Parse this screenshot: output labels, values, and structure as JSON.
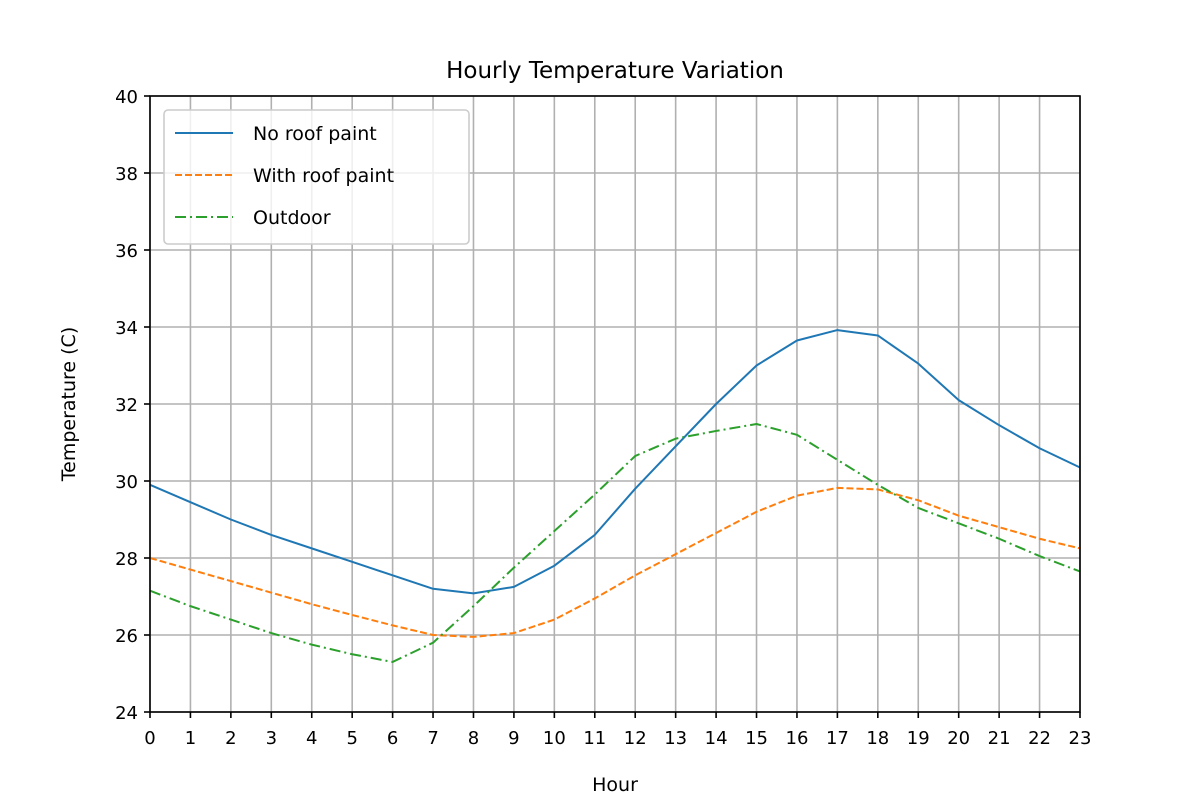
{
  "chart_data": {
    "type": "line",
    "title": "Hourly Temperature Variation",
    "xlabel": "Hour",
    "ylabel": "Temperature (C)",
    "x": [
      0,
      1,
      2,
      3,
      4,
      5,
      6,
      7,
      8,
      9,
      10,
      11,
      12,
      13,
      14,
      15,
      16,
      17,
      18,
      19,
      20,
      21,
      22,
      23
    ],
    "xlim": [
      0,
      23
    ],
    "ylim": [
      24,
      40
    ],
    "yticks": [
      24,
      26,
      28,
      30,
      32,
      34,
      36,
      38,
      40
    ],
    "grid": true,
    "legend_position": "top-left",
    "series": [
      {
        "name": "No roof paint",
        "color": "#1f77b4",
        "linestyle": "solid",
        "values": [
          29.9,
          29.45,
          29.0,
          28.6,
          28.25,
          27.9,
          27.55,
          27.2,
          27.08,
          27.25,
          27.8,
          28.6,
          29.8,
          30.9,
          32.0,
          33.0,
          33.65,
          33.92,
          33.78,
          33.05,
          32.1,
          31.45,
          30.85,
          30.35
        ]
      },
      {
        "name": "With roof paint",
        "color": "#ff7f0e",
        "linestyle": "dashed",
        "values": [
          28.0,
          27.7,
          27.4,
          27.1,
          26.8,
          26.52,
          26.25,
          26.0,
          25.95,
          26.05,
          26.4,
          26.95,
          27.55,
          28.1,
          28.65,
          29.2,
          29.62,
          29.82,
          29.78,
          29.5,
          29.1,
          28.8,
          28.5,
          28.25
        ]
      },
      {
        "name": "Outdoor",
        "color": "#2ca02c",
        "linestyle": "dashdot",
        "values": [
          27.15,
          26.75,
          26.4,
          26.05,
          25.75,
          25.5,
          25.3,
          25.8,
          26.75,
          27.75,
          28.7,
          29.65,
          30.65,
          31.1,
          31.3,
          31.48,
          31.2,
          30.55,
          29.9,
          29.3,
          28.9,
          28.5,
          28.05,
          27.65
        ]
      }
    ]
  }
}
